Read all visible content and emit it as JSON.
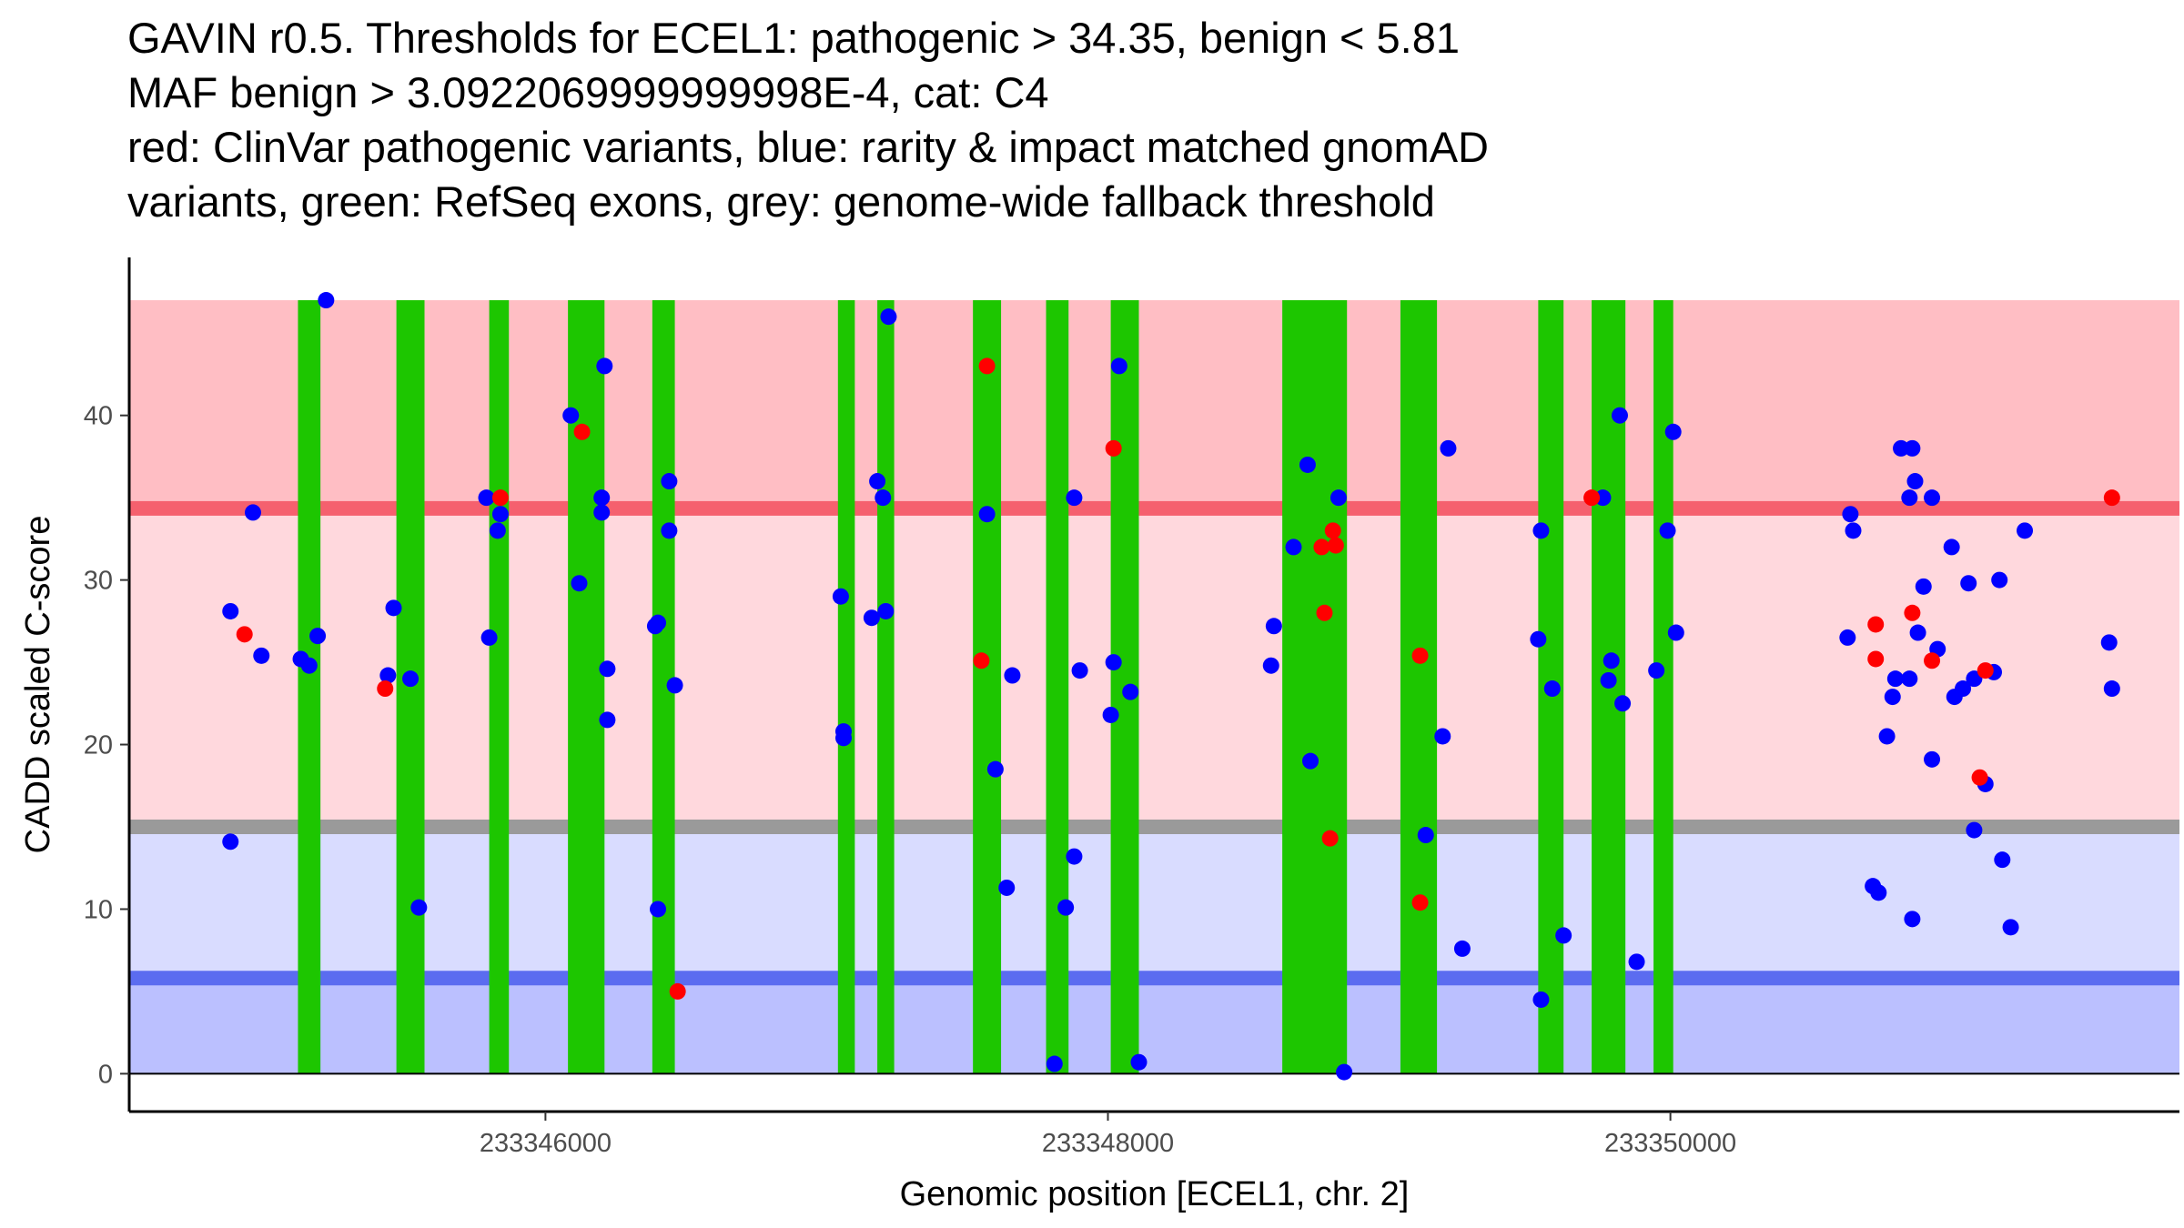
{
  "chart_data": {
    "type": "scatter",
    "title": [
      "GAVIN r0.5. Thresholds for ECEL1: pathogenic > 34.35, benign < 5.81",
      "MAF benign > 3.0922069999999998E-4, cat: C4",
      "red: ClinVar pathogenic variants, blue: rarity & impact matched gnomAD",
      "variants, green: RefSeq exons, grey: genome-wide fallback threshold"
    ],
    "xlabel": "Genomic position [ECEL1, chr. 2]",
    "ylabel": "CADD scaled C-score",
    "xlim": [
      233344520,
      233351810
    ],
    "ylim": [
      -2.3,
      49.6
    ],
    "x_ticks": [
      {
        "value": 233346000,
        "label": "233346000"
      },
      {
        "value": 233348000,
        "label": "233348000"
      },
      {
        "value": 233350000,
        "label": "233350000"
      }
    ],
    "y_ticks": [
      {
        "value": 0,
        "label": "0"
      },
      {
        "value": 10,
        "label": "10"
      },
      {
        "value": 20,
        "label": "20"
      },
      {
        "value": 30,
        "label": "30"
      },
      {
        "value": 40,
        "label": "40"
      }
    ],
    "grid": false,
    "colors": {
      "pathogenic_band": "#ffbec4",
      "mid_pathogenic_band": "#ffd8dd",
      "mid_benign_band": "#d9dcff",
      "benign_band": "#bbc0ff",
      "pathogenic_threshold_line": "#f5606e",
      "fallback_threshold_line": "#9a9a9a",
      "benign_threshold_line": "#5b6cf0",
      "exon": "#1dc600",
      "clinvar": "#ff0000",
      "gnomad": "#0000ff"
    },
    "bands": {
      "pathogenic_top": 47.0,
      "pathogenic_threshold": 34.35,
      "fallback_threshold": 15.0,
      "benign_threshold": 5.81
    },
    "exons": [
      [
        233345120,
        233345200
      ],
      [
        233345470,
        233345570
      ],
      [
        233345800,
        233345870
      ],
      [
        233346080,
        233346210
      ],
      [
        233346380,
        233346460
      ],
      [
        233347040,
        233347100
      ],
      [
        233347180,
        233347240
      ],
      [
        233347520,
        233347620
      ],
      [
        233347780,
        233347860
      ],
      [
        233348010,
        233348110
      ],
      [
        233348620,
        233348850
      ],
      [
        233349040,
        233349170
      ],
      [
        233349530,
        233349620
      ],
      [
        233349720,
        233349840
      ],
      [
        233349940,
        233350010
      ]
    ],
    "series": [
      {
        "name": "ClinVar pathogenic variants",
        "color": "#ff0000",
        "points": [
          [
            233344930,
            26.7
          ],
          [
            233345430,
            23.4
          ],
          [
            233345840,
            35.0
          ],
          [
            233346130,
            39.0
          ],
          [
            233346470,
            5.0
          ],
          [
            233347550,
            25.1
          ],
          [
            233347570,
            43.0
          ],
          [
            233348020,
            38.0
          ],
          [
            233348760,
            32.0
          ],
          [
            233348770,
            28.0
          ],
          [
            233348790,
            14.3
          ],
          [
            233348800,
            33.0
          ],
          [
            233348810,
            32.1
          ],
          [
            233349110,
            25.4
          ],
          [
            233349110,
            10.4
          ],
          [
            233349720,
            35.0
          ],
          [
            233350730,
            27.3
          ],
          [
            233350730,
            25.2
          ],
          [
            233350860,
            28.0
          ],
          [
            233350930,
            25.1
          ],
          [
            233351100,
            18.0
          ],
          [
            233351120,
            24.5
          ],
          [
            233351570,
            35.0
          ]
        ]
      },
      {
        "name": "rarity & impact matched gnomAD variants",
        "color": "#0000ff",
        "points": [
          [
            233344880,
            28.1
          ],
          [
            233344880,
            14.1
          ],
          [
            233344960,
            34.1
          ],
          [
            233344990,
            25.4
          ],
          [
            233345130,
            25.2
          ],
          [
            233345160,
            24.8
          ],
          [
            233345190,
            26.6
          ],
          [
            233345220,
            47.0
          ],
          [
            233345440,
            24.2
          ],
          [
            233345460,
            28.3
          ],
          [
            233345520,
            24.0
          ],
          [
            233345550,
            10.1
          ],
          [
            233345790,
            35.0
          ],
          [
            233345800,
            26.5
          ],
          [
            233345830,
            33.0
          ],
          [
            233345840,
            34.0
          ],
          [
            233346090,
            40.0
          ],
          [
            233346120,
            29.8
          ],
          [
            233346200,
            34.1
          ],
          [
            233346200,
            35.0
          ],
          [
            233346210,
            43.0
          ],
          [
            233346220,
            24.6
          ],
          [
            233346220,
            21.5
          ],
          [
            233346390,
            27.2
          ],
          [
            233346400,
            27.4
          ],
          [
            233346400,
            10.0
          ],
          [
            233346440,
            33.0
          ],
          [
            233346440,
            36.0
          ],
          [
            233346460,
            23.6
          ],
          [
            233347050,
            29.0
          ],
          [
            233347060,
            20.8
          ],
          [
            233347060,
            20.4
          ],
          [
            233347160,
            27.7
          ],
          [
            233347180,
            36.0
          ],
          [
            233347200,
            35.0
          ],
          [
            233347210,
            28.1
          ],
          [
            233347220,
            46.0
          ],
          [
            233347570,
            34.0
          ],
          [
            233347600,
            18.5
          ],
          [
            233347640,
            11.3
          ],
          [
            233347660,
            24.2
          ],
          [
            233347810,
            0.6
          ],
          [
            233347850,
            10.1
          ],
          [
            233347880,
            13.2
          ],
          [
            233347880,
            35.0
          ],
          [
            233347900,
            24.5
          ],
          [
            233348010,
            21.8
          ],
          [
            233348020,
            25.0
          ],
          [
            233348040,
            43.0
          ],
          [
            233348080,
            23.2
          ],
          [
            233348110,
            0.7
          ],
          [
            233348580,
            24.8
          ],
          [
            233348590,
            27.2
          ],
          [
            233348660,
            32.0
          ],
          [
            233348710,
            37.0
          ],
          [
            233348720,
            19.0
          ],
          [
            233348820,
            35.0
          ],
          [
            233348840,
            0.1
          ],
          [
            233349130,
            14.5
          ],
          [
            233349190,
            20.5
          ],
          [
            233349210,
            38.0
          ],
          [
            233349260,
            7.6
          ],
          [
            233349530,
            26.4
          ],
          [
            233349540,
            33.0
          ],
          [
            233349540,
            4.5
          ],
          [
            233349580,
            23.4
          ],
          [
            233349620,
            8.4
          ],
          [
            233349760,
            35.0
          ],
          [
            233349780,
            23.9
          ],
          [
            233349790,
            25.1
          ],
          [
            233349820,
            40.0
          ],
          [
            233349830,
            22.5
          ],
          [
            233349880,
            6.8
          ],
          [
            233349950,
            24.5
          ],
          [
            233349990,
            33.0
          ],
          [
            233350010,
            39.0
          ],
          [
            233350020,
            26.8
          ],
          [
            233350630,
            26.5
          ],
          [
            233350640,
            34.0
          ],
          [
            233350650,
            33.0
          ],
          [
            233350720,
            11.4
          ],
          [
            233350740,
            11.0
          ],
          [
            233350770,
            20.5
          ],
          [
            233350790,
            22.9
          ],
          [
            233350800,
            24.0
          ],
          [
            233350820,
            38.0
          ],
          [
            233350850,
            24.0
          ],
          [
            233350850,
            35.0
          ],
          [
            233350860,
            38.0
          ],
          [
            233350860,
            9.4
          ],
          [
            233350870,
            36.0
          ],
          [
            233350880,
            26.8
          ],
          [
            233350900,
            29.6
          ],
          [
            233350930,
            35.0
          ],
          [
            233350930,
            19.1
          ],
          [
            233350950,
            25.8
          ],
          [
            233351000,
            32.0
          ],
          [
            233351010,
            22.9
          ],
          [
            233351040,
            23.4
          ],
          [
            233351060,
            29.8
          ],
          [
            233351080,
            24.0
          ],
          [
            233351080,
            14.8
          ],
          [
            233351120,
            17.6
          ],
          [
            233351150,
            24.4
          ],
          [
            233351170,
            30.0
          ],
          [
            233351180,
            13.0
          ],
          [
            233351210,
            8.9
          ],
          [
            233351260,
            33.0
          ],
          [
            233351560,
            26.2
          ],
          [
            233351570,
            23.4
          ]
        ]
      }
    ]
  }
}
